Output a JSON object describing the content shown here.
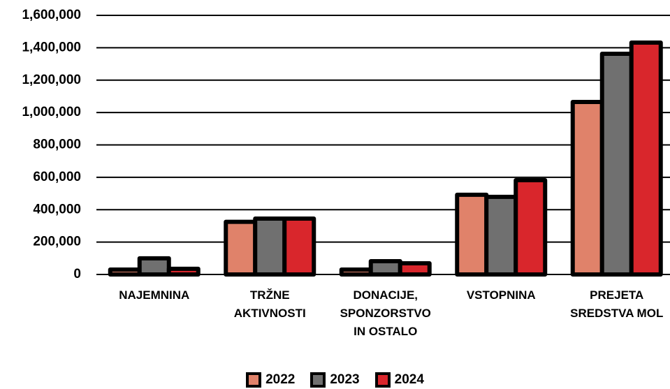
{
  "chart_data": {
    "type": "bar",
    "categories": [
      "NAJEMNINA",
      "TRŽNE AKTIVNOSTI",
      "DONACIJE, SPONZORSTVO IN OSTALO",
      "VSTOPNINA",
      "PREJETA SREDSTVA MOL"
    ],
    "series": [
      {
        "name": "2022",
        "color": "#e0826a",
        "values": [
          30000,
          325000,
          30000,
          492000,
          1065000
        ]
      },
      {
        "name": "2023",
        "color": "#707070",
        "values": [
          100000,
          345000,
          82000,
          479000,
          1363000
        ]
      },
      {
        "name": "2024",
        "color": "#d9262c",
        "values": [
          35000,
          345000,
          69000,
          582000,
          1432000
        ]
      }
    ],
    "ylim": [
      0,
      1600000
    ],
    "yticks": [
      0,
      {
        "value": 200000,
        "label": "200,000"
      },
      {
        "value": 400000,
        "label": "400,000"
      },
      {
        "value": 600000,
        "label": "600,000"
      },
      {
        "value": 800000,
        "label": "800,000"
      },
      {
        "value": 1000000,
        "label": "1,000,000"
      },
      {
        "value": 1200000,
        "label": "1,200,000"
      },
      {
        "value": 1400000,
        "label": "1,400,000"
      },
      {
        "value": 1600000,
        "label": "1,600,000"
      }
    ],
    "grid": true,
    "legend": "bottom"
  }
}
